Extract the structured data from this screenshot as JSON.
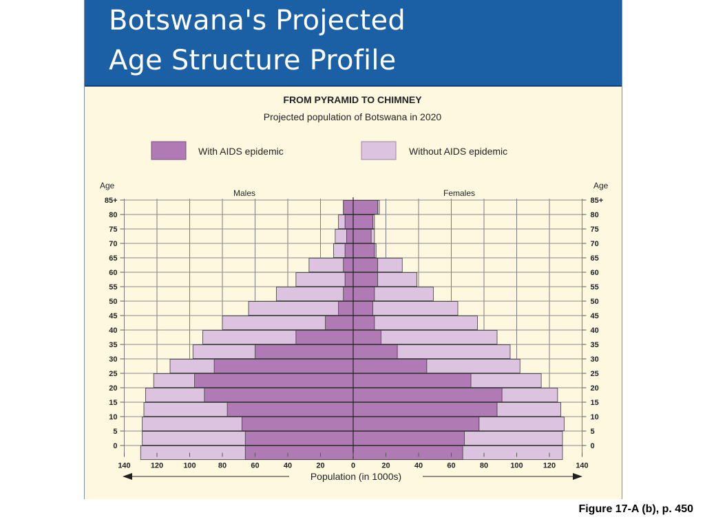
{
  "slide": {
    "title_line1": "Botswana's Projected",
    "title_line2": "Age Structure Profile",
    "caption": "Figure 17-A (b), p. 450"
  },
  "chart_data": {
    "type": "bar",
    "orientation": "horizontal-pyramid",
    "title": "FROM PYRAMID TO CHIMNEY",
    "subtitle": "Projected population of Botswana in 2020",
    "legend": [
      {
        "label": "With AIDS epidemic",
        "color": "#b07ab4"
      },
      {
        "label": "Without AIDS epidemic",
        "color": "#dcc3e0"
      }
    ],
    "age_axis_label": "Age",
    "males_label": "Males",
    "females_label": "Females",
    "xlabel": "Population (in 1000s)",
    "xlim": [
      -140,
      140
    ],
    "x_ticks": [
      140,
      120,
      100,
      80,
      60,
      40,
      20,
      0,
      20,
      40,
      60,
      80,
      100,
      120,
      140
    ],
    "age_groups": [
      "85+",
      "80",
      "75",
      "70",
      "65",
      "60",
      "55",
      "50",
      "45",
      "40",
      "35",
      "30",
      "25",
      "20",
      "15",
      "10",
      "5",
      "0"
    ],
    "males_with_aids": [
      6,
      5,
      4,
      5,
      6,
      5,
      6,
      9,
      17,
      35,
      60,
      85,
      97,
      91,
      77,
      68,
      66,
      66
    ],
    "males_without_aids": [
      6,
      9,
      11,
      12,
      27,
      35,
      47,
      64,
      80,
      92,
      98,
      112,
      122,
      127,
      128,
      129,
      129,
      130
    ],
    "females_with_aids": [
      15,
      12,
      11,
      13,
      15,
      15,
      13,
      12,
      13,
      17,
      27,
      45,
      72,
      91,
      88,
      77,
      68,
      67
    ],
    "females_without_aids": [
      16,
      13,
      13,
      14,
      30,
      39,
      49,
      64,
      76,
      88,
      96,
      102,
      115,
      125,
      127,
      129,
      128,
      128
    ],
    "grid": true
  }
}
